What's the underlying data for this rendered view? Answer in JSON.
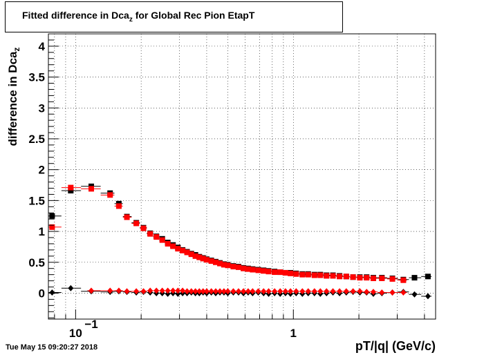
{
  "chart_data": {
    "type": "scatter",
    "title": "Fitted difference in Dca",
    "title_sub": "z",
    "title_tail": " for Global Rec Pion EtapT",
    "ylabel": "difference in Dca",
    "ylabel_sub": "z",
    "xlabel": "pT/|q| (GeV/c)",
    "xscale": "log",
    "xlim": [
      0.075,
      4.5
    ],
    "ylim": [
      -0.42,
      4.2
    ],
    "grid": true,
    "x_ticks": [
      {
        "value": 0.1,
        "label": "10",
        "exp": "−1"
      },
      {
        "value": 1,
        "label": "1",
        "exp": ""
      }
    ],
    "y_ticks": [
      {
        "value": 0,
        "label": "0"
      },
      {
        "value": 0.5,
        "label": "0.5"
      },
      {
        "value": 1,
        "label": "1"
      },
      {
        "value": 1.5,
        "label": "1.5"
      },
      {
        "value": 2,
        "label": "2"
      },
      {
        "value": 2.5,
        "label": "2.5"
      },
      {
        "value": 3,
        "label": "3"
      },
      {
        "value": 3.5,
        "label": "3.5"
      },
      {
        "value": 4,
        "label": "4"
      }
    ],
    "series": [
      {
        "marker": "square",
        "color": "#000000",
        "points": [
          [
            0.078,
            1.25
          ],
          [
            0.095,
            1.66
          ],
          [
            0.118,
            1.73
          ],
          [
            0.144,
            1.62
          ],
          [
            0.158,
            1.45
          ],
          [
            0.172,
            1.24
          ],
          [
            0.19,
            1.14
          ],
          [
            0.205,
            1.06
          ],
          [
            0.22,
            0.97
          ],
          [
            0.235,
            0.92
          ],
          [
            0.25,
            0.88
          ],
          [
            0.265,
            0.82
          ],
          [
            0.28,
            0.78
          ],
          [
            0.295,
            0.74
          ],
          [
            0.31,
            0.7
          ],
          [
            0.325,
            0.67
          ],
          [
            0.34,
            0.64
          ],
          [
            0.355,
            0.62
          ],
          [
            0.37,
            0.59
          ],
          [
            0.385,
            0.57
          ],
          [
            0.4,
            0.55
          ],
          [
            0.42,
            0.53
          ],
          [
            0.44,
            0.51
          ],
          [
            0.46,
            0.49
          ],
          [
            0.48,
            0.47
          ],
          [
            0.5,
            0.46
          ],
          [
            0.53,
            0.44
          ],
          [
            0.56,
            0.43
          ],
          [
            0.59,
            0.41
          ],
          [
            0.62,
            0.4
          ],
          [
            0.65,
            0.39
          ],
          [
            0.69,
            0.38
          ],
          [
            0.73,
            0.37
          ],
          [
            0.77,
            0.36
          ],
          [
            0.82,
            0.35
          ],
          [
            0.87,
            0.34
          ],
          [
            0.92,
            0.33
          ],
          [
            0.97,
            0.33
          ],
          [
            1.03,
            0.32
          ],
          [
            1.1,
            0.31
          ],
          [
            1.17,
            0.31
          ],
          [
            1.25,
            0.3
          ],
          [
            1.33,
            0.3
          ],
          [
            1.42,
            0.29
          ],
          [
            1.52,
            0.29
          ],
          [
            1.63,
            0.28
          ],
          [
            1.75,
            0.27
          ],
          [
            1.88,
            0.26
          ],
          [
            2.02,
            0.26
          ],
          [
            2.17,
            0.26
          ],
          [
            2.33,
            0.25
          ],
          [
            2.55,
            0.25
          ],
          [
            2.85,
            0.24
          ],
          [
            3.2,
            0.22
          ],
          [
            3.6,
            0.25
          ],
          [
            4.15,
            0.27
          ]
        ]
      },
      {
        "marker": "square",
        "color": "#ff0000",
        "points": [
          [
            0.078,
            1.07
          ],
          [
            0.095,
            1.71
          ],
          [
            0.118,
            1.69
          ],
          [
            0.144,
            1.59
          ],
          [
            0.158,
            1.41
          ],
          [
            0.172,
            1.23
          ],
          [
            0.19,
            1.13
          ],
          [
            0.205,
            1.05
          ],
          [
            0.22,
            0.96
          ],
          [
            0.235,
            0.91
          ],
          [
            0.25,
            0.86
          ],
          [
            0.265,
            0.8
          ],
          [
            0.28,
            0.76
          ],
          [
            0.295,
            0.72
          ],
          [
            0.31,
            0.69
          ],
          [
            0.325,
            0.66
          ],
          [
            0.34,
            0.63
          ],
          [
            0.355,
            0.6
          ],
          [
            0.37,
            0.58
          ],
          [
            0.385,
            0.56
          ],
          [
            0.4,
            0.54
          ],
          [
            0.42,
            0.52
          ],
          [
            0.44,
            0.5
          ],
          [
            0.46,
            0.48
          ],
          [
            0.48,
            0.46
          ],
          [
            0.5,
            0.45
          ],
          [
            0.53,
            0.43
          ],
          [
            0.56,
            0.42
          ],
          [
            0.59,
            0.4
          ],
          [
            0.62,
            0.39
          ],
          [
            0.65,
            0.38
          ],
          [
            0.69,
            0.37
          ],
          [
            0.73,
            0.36
          ],
          [
            0.77,
            0.35
          ],
          [
            0.82,
            0.34
          ],
          [
            0.87,
            0.34
          ],
          [
            0.92,
            0.33
          ],
          [
            0.97,
            0.32
          ],
          [
            1.03,
            0.31
          ],
          [
            1.1,
            0.3
          ],
          [
            1.17,
            0.3
          ],
          [
            1.25,
            0.29
          ],
          [
            1.33,
            0.29
          ],
          [
            1.42,
            0.28
          ],
          [
            1.52,
            0.28
          ],
          [
            1.63,
            0.27
          ],
          [
            1.75,
            0.27
          ],
          [
            1.88,
            0.26
          ],
          [
            2.02,
            0.25
          ],
          [
            2.17,
            0.25
          ],
          [
            2.33,
            0.24
          ],
          [
            2.55,
            0.24
          ],
          [
            2.85,
            0.23
          ],
          [
            3.2,
            0.21
          ]
        ]
      },
      {
        "marker": "diamond",
        "color": "#000000",
        "points": [
          [
            0.078,
            0.01
          ],
          [
            0.095,
            0.08
          ],
          [
            0.118,
            0.03
          ],
          [
            0.144,
            0.02
          ],
          [
            0.158,
            0.03
          ],
          [
            0.172,
            0.02
          ],
          [
            0.19,
            0.01
          ],
          [
            0.205,
            0.02
          ],
          [
            0.22,
            0.01
          ],
          [
            0.235,
            0.0
          ],
          [
            0.25,
            0.0
          ],
          [
            0.265,
            -0.01
          ],
          [
            0.28,
            0.0
          ],
          [
            0.295,
            -0.01
          ],
          [
            0.31,
            0.0
          ],
          [
            0.325,
            0.0
          ],
          [
            0.34,
            0.01
          ],
          [
            0.355,
            0.0
          ],
          [
            0.37,
            0.0
          ],
          [
            0.385,
            0.01
          ],
          [
            0.4,
            0.0
          ],
          [
            0.42,
            0.01
          ],
          [
            0.44,
            0.0
          ],
          [
            0.46,
            0.01
          ],
          [
            0.48,
            0.01
          ],
          [
            0.5,
            0.0
          ],
          [
            0.53,
            0.01
          ],
          [
            0.56,
            0.01
          ],
          [
            0.59,
            0.0
          ],
          [
            0.62,
            0.01
          ],
          [
            0.65,
            0.0
          ],
          [
            0.69,
            0.01
          ],
          [
            0.73,
            0.0
          ],
          [
            0.77,
            -0.01
          ],
          [
            0.82,
            0.0
          ],
          [
            0.87,
            -0.01
          ],
          [
            0.92,
            0.0
          ],
          [
            0.97,
            -0.01
          ],
          [
            1.03,
            0.0
          ],
          [
            1.1,
            -0.01
          ],
          [
            1.17,
            0.0
          ],
          [
            1.25,
            0.0
          ],
          [
            1.33,
            -0.01
          ],
          [
            1.42,
            0.0
          ],
          [
            1.52,
            0.01
          ],
          [
            1.63,
            0.0
          ],
          [
            1.75,
            0.01
          ],
          [
            1.88,
            0.02
          ],
          [
            2.02,
            0.01
          ],
          [
            2.17,
            0.01
          ],
          [
            2.33,
            -0.01
          ],
          [
            2.55,
            0.0
          ],
          [
            2.85,
            0.01
          ],
          [
            3.2,
            0.02
          ],
          [
            3.6,
            -0.02
          ],
          [
            4.15,
            -0.05
          ]
        ]
      },
      {
        "marker": "diamond",
        "color": "#ff0000",
        "points": [
          [
            0.118,
            0.04
          ],
          [
            0.144,
            0.04
          ],
          [
            0.158,
            0.04
          ],
          [
            0.172,
            0.03
          ],
          [
            0.19,
            0.03
          ],
          [
            0.205,
            0.03
          ],
          [
            0.22,
            0.04
          ],
          [
            0.235,
            0.04
          ],
          [
            0.25,
            0.04
          ],
          [
            0.265,
            0.04
          ],
          [
            0.28,
            0.04
          ],
          [
            0.295,
            0.04
          ],
          [
            0.31,
            0.04
          ],
          [
            0.325,
            0.03
          ],
          [
            0.34,
            0.03
          ],
          [
            0.355,
            0.03
          ],
          [
            0.37,
            0.03
          ],
          [
            0.385,
            0.03
          ],
          [
            0.4,
            0.03
          ],
          [
            0.42,
            0.03
          ],
          [
            0.44,
            0.03
          ],
          [
            0.46,
            0.03
          ],
          [
            0.48,
            0.03
          ],
          [
            0.5,
            0.03
          ],
          [
            0.53,
            0.03
          ],
          [
            0.56,
            0.03
          ],
          [
            0.59,
            0.03
          ],
          [
            0.62,
            0.03
          ],
          [
            0.65,
            0.03
          ],
          [
            0.69,
            0.03
          ],
          [
            0.73,
            0.03
          ],
          [
            0.77,
            0.03
          ],
          [
            0.82,
            0.03
          ],
          [
            0.87,
            0.03
          ],
          [
            0.92,
            0.03
          ],
          [
            0.97,
            0.03
          ],
          [
            1.03,
            0.03
          ],
          [
            1.1,
            0.03
          ],
          [
            1.17,
            0.03
          ],
          [
            1.25,
            0.03
          ],
          [
            1.33,
            0.03
          ],
          [
            1.42,
            0.03
          ],
          [
            1.52,
            0.03
          ],
          [
            1.63,
            0.03
          ],
          [
            1.75,
            0.03
          ],
          [
            1.88,
            0.03
          ],
          [
            2.02,
            0.03
          ],
          [
            2.17,
            0.02
          ],
          [
            2.33,
            0.02
          ],
          [
            2.55,
            0.01
          ],
          [
            2.85,
            0.01
          ],
          [
            3.2,
            0.01
          ]
        ]
      }
    ]
  },
  "timestamp": "Tue May 15 09:20:27 2018"
}
